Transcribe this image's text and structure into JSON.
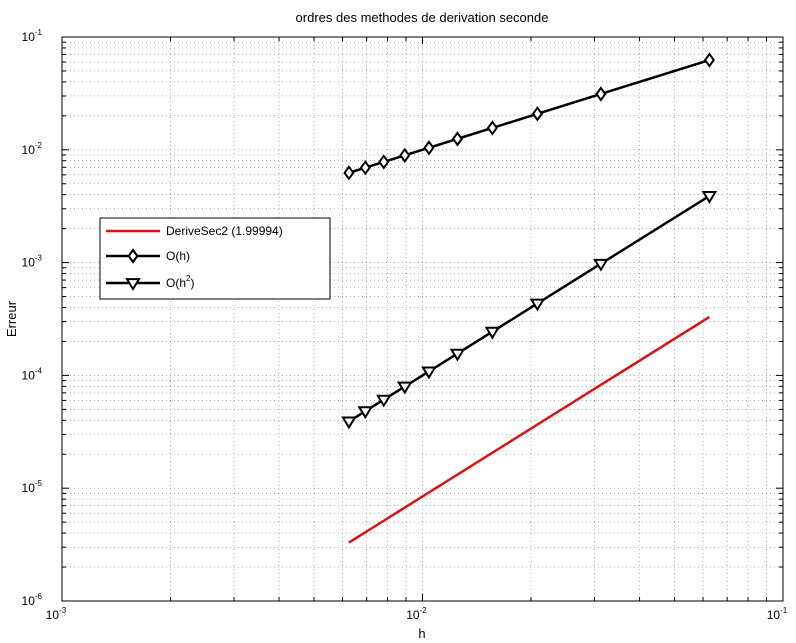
{
  "chart_data": {
    "type": "line",
    "title": "ordres des methodes de derivation seconde",
    "xlabel": "h",
    "ylabel": "Erreur",
    "xscale": "log",
    "yscale": "log",
    "xlim": [
      0.001,
      0.1
    ],
    "ylim": [
      1e-06,
      0.1
    ],
    "grid": true,
    "legend_position": "middle-left",
    "x_ticks": [
      {
        "base": "10",
        "exp": "-3"
      },
      {
        "base": "10",
        "exp": "-2"
      },
      {
        "base": "10",
        "exp": "-1"
      }
    ],
    "y_ticks": [
      {
        "base": "10",
        "exp": "-6"
      },
      {
        "base": "10",
        "exp": "-5"
      },
      {
        "base": "10",
        "exp": "-4"
      },
      {
        "base": "10",
        "exp": "-3"
      },
      {
        "base": "10",
        "exp": "-2"
      },
      {
        "base": "10",
        "exp": "-1"
      }
    ],
    "series": [
      {
        "name": "DeriveSec2 (1.99994)",
        "color": "#e01010",
        "marker": "none",
        "x": [
          0.00625,
          0.0625
        ],
        "y": [
          3.3e-06,
          0.00033
        ]
      },
      {
        "name": "O(h)",
        "color": "#000000",
        "marker": "diamond",
        "x": [
          0.00625,
          0.00694,
          0.00781,
          0.00893,
          0.01042,
          0.0125,
          0.015625,
          0.020833,
          0.03125,
          0.0625
        ],
        "y": [
          0.00625,
          0.00694,
          0.00781,
          0.00893,
          0.01042,
          0.0125,
          0.015625,
          0.020833,
          0.03125,
          0.0625
        ]
      },
      {
        "name": "O(h2)",
        "name_base": "O(h",
        "name_sup": "2",
        "name_tail": ")",
        "color": "#000000",
        "marker": "triangle-down",
        "x": [
          0.00625,
          0.00694,
          0.00781,
          0.00893,
          0.01042,
          0.0125,
          0.015625,
          0.020833,
          0.03125,
          0.0625
        ],
        "y": [
          3.91e-05,
          4.82e-05,
          6.1e-05,
          7.97e-05,
          0.0001085,
          0.000156,
          0.000244,
          0.000434,
          0.000977,
          0.0039
        ]
      }
    ]
  }
}
